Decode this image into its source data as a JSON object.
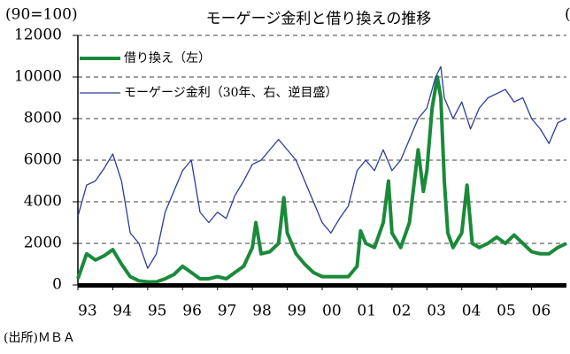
{
  "chart_data": {
    "type": "line",
    "title": "モーゲージ金利と借り換えの推移",
    "ylabel": "(90=100)",
    "y2_label": "(",
    "source": "(出所)ＭＢＡ",
    "xlim": [
      1993,
      2007
    ],
    "xticks": [
      {
        "value": 1993,
        "label": "93"
      },
      {
        "value": 1994,
        "label": "94"
      },
      {
        "value": 1995,
        "label": "95"
      },
      {
        "value": 1996,
        "label": "96"
      },
      {
        "value": 1997,
        "label": "97"
      },
      {
        "value": 1998,
        "label": "98"
      },
      {
        "value": 1999,
        "label": "99"
      },
      {
        "value": 2000,
        "label": "00"
      },
      {
        "value": 2001,
        "label": "01"
      },
      {
        "value": 2002,
        "label": "02"
      },
      {
        "value": 2003,
        "label": "03"
      },
      {
        "value": 2004,
        "label": "04"
      },
      {
        "value": 2005,
        "label": "05"
      },
      {
        "value": 2006,
        "label": "06"
      }
    ],
    "ylim": [
      0,
      12000
    ],
    "yticks": [
      0,
      2000,
      4000,
      6000,
      8000,
      10000,
      12000
    ],
    "grid": true,
    "legend": "upper left",
    "series": [
      {
        "name": "借り換え（左）",
        "color": "#1a8a3a",
        "width": 4,
        "x": [
          1993,
          1993.25,
          1993.5,
          1993.75,
          1994,
          1994.25,
          1994.5,
          1994.75,
          1995,
          1995.25,
          1995.5,
          1995.75,
          1996,
          1996.25,
          1996.5,
          1996.75,
          1997,
          1997.25,
          1997.5,
          1997.75,
          1998,
          1998.1,
          1998.25,
          1998.5,
          1998.75,
          1998.9,
          1999,
          1999.25,
          1999.5,
          1999.75,
          2000,
          2000.25,
          2000.5,
          2000.75,
          2001,
          2001.1,
          2001.25,
          2001.5,
          2001.75,
          2001.9,
          2002,
          2002.25,
          2002.5,
          2002.75,
          2002.9,
          2003,
          2003.15,
          2003.3,
          2003.4,
          2003.5,
          2003.6,
          2003.75,
          2004,
          2004.15,
          2004.3,
          2004.5,
          2004.75,
          2005,
          2005.25,
          2005.5,
          2005.75,
          2006,
          2006.25,
          2006.5,
          2006.75,
          2007
        ],
        "values": [
          300,
          1500,
          1200,
          1400,
          1700,
          1000,
          400,
          200,
          150,
          150,
          300,
          500,
          900,
          600,
          300,
          300,
          400,
          300,
          600,
          900,
          1800,
          3000,
          1500,
          1600,
          2000,
          4200,
          2500,
          1500,
          1000,
          600,
          400,
          400,
          400,
          400,
          900,
          2600,
          2000,
          1800,
          3000,
          5000,
          2500,
          1800,
          3000,
          6500,
          4500,
          5500,
          8500,
          10000,
          9000,
          5000,
          2500,
          1800,
          2500,
          4800,
          2000,
          1800,
          2000,
          2300,
          2000,
          2400,
          2000,
          1600,
          1500,
          1500,
          1800,
          2000
        ]
      },
      {
        "name": "モーゲージ金利（30年、右、逆目盛）",
        "color": "#2a3c9a",
        "width": 1.3,
        "x": [
          1993,
          1993.25,
          1993.5,
          1993.75,
          1994,
          1994.25,
          1994.5,
          1994.75,
          1995,
          1995.25,
          1995.5,
          1995.75,
          1996,
          1996.25,
          1996.5,
          1996.75,
          1997,
          1997.25,
          1997.5,
          1997.75,
          1998,
          1998.25,
          1998.5,
          1998.75,
          1999,
          1999.25,
          1999.5,
          1999.75,
          2000,
          2000.25,
          2000.5,
          2000.75,
          2001,
          2001.25,
          2001.5,
          2001.75,
          2002,
          2002.25,
          2002.5,
          2002.75,
          2003,
          2003.25,
          2003.4,
          2003.5,
          2003.75,
          2004,
          2004.25,
          2004.5,
          2004.75,
          2005,
          2005.25,
          2005.5,
          2005.75,
          2006,
          2006.25,
          2006.5,
          2006.75,
          2007
        ],
        "values": [
          3300,
          4800,
          5000,
          5600,
          6300,
          5000,
          2500,
          2000,
          800,
          1500,
          3500,
          4500,
          5500,
          6000,
          3500,
          3000,
          3500,
          3200,
          4300,
          5000,
          5800,
          6000,
          6500,
          7000,
          6500,
          6000,
          5000,
          4000,
          3000,
          2500,
          3200,
          3800,
          5500,
          6000,
          5500,
          6500,
          5500,
          6000,
          7000,
          8000,
          8500,
          10000,
          10500,
          9000,
          8000,
          8800,
          7500,
          8500,
          9000,
          9200,
          9400,
          8800,
          9000,
          8000,
          7500,
          6800,
          7800,
          8000
        ]
      }
    ]
  }
}
